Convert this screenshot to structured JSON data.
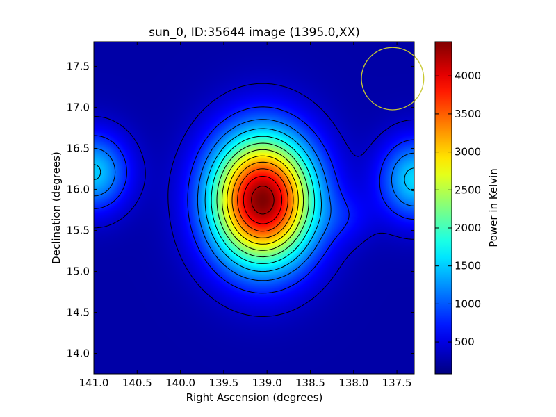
{
  "chart_data": {
    "type": "heatmap",
    "title": "sun_0, ID:35644 image (1395.0,XX)",
    "xlabel": "Right Ascension (degrees)",
    "ylabel": "Declination (degrees)",
    "xlim": [
      141.0,
      137.3
    ],
    "ylim": [
      13.75,
      17.8
    ],
    "x_ticks": [
      "141.0",
      "140.5",
      "140.0",
      "139.5",
      "139.0",
      "138.5",
      "138.0",
      "137.5"
    ],
    "y_ticks": [
      "14.0",
      "14.5",
      "15.0",
      "15.5",
      "16.0",
      "16.5",
      "17.0",
      "17.5"
    ],
    "colorbar": {
      "label": "Power in Kelvin",
      "range": [
        80,
        4450
      ],
      "ticks": [
        "500",
        "1000",
        "1500",
        "2000",
        "2500",
        "3000",
        "3500",
        "4000"
      ],
      "colormap": "jet"
    },
    "background_level": 250,
    "sources": [
      {
        "ra": 139.05,
        "dec": 15.87,
        "peak": 4450,
        "sigma_ra": 0.42,
        "sigma_dec": 0.55
      },
      {
        "ra": 141.0,
        "dec": 16.21,
        "peak": 1500,
        "sigma_ra": 0.28,
        "sigma_dec": 0.33
      },
      {
        "ra": 137.3,
        "dec": 16.12,
        "peak": 1550,
        "sigma_ra": 0.28,
        "sigma_dec": 0.35
      },
      {
        "ra": 138.05,
        "dec": 15.65,
        "peak": 500,
        "sigma_ra": 0.22,
        "sigma_dec": 0.22
      }
    ],
    "contour_levels": [
      400,
      750,
      1100,
      1450,
      1800,
      2150,
      2500,
      2850,
      3200,
      3550,
      3900,
      4250
    ],
    "beam": {
      "ra": 137.55,
      "dec": 17.35,
      "radius_deg": 0.36,
      "color": "#c8c832"
    }
  }
}
